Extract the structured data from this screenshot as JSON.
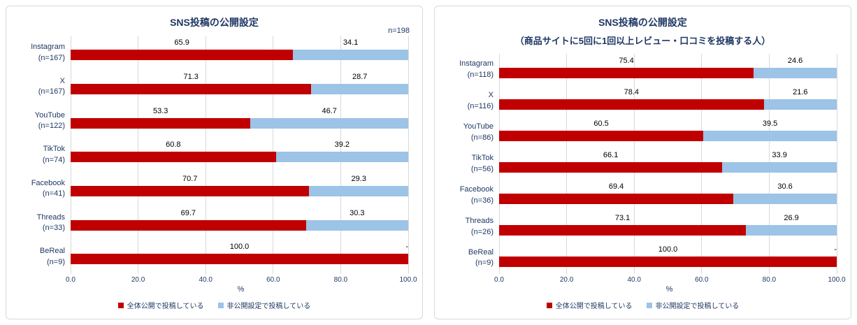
{
  "colors": {
    "series1": "#C00000",
    "series2": "#9DC3E6",
    "text": "#1F3864",
    "data_label": "#000000",
    "grid": "#D9D9D9",
    "panel_border": "#D9D9D9"
  },
  "chart_data": [
    {
      "type": "bar",
      "orientation": "horizontal",
      "stacked": true,
      "title": "SNS投稿の公開設定",
      "note": "n=198",
      "categories": [
        "Instagram",
        "X",
        "YouTube",
        "TikTok",
        "Facebook",
        "Threads",
        "BeReal"
      ],
      "category_n": [
        "(n=167)",
        "(n=167)",
        "(n=122)",
        "(n=74)",
        "(n=41)",
        "(n=33)",
        "(n=9)"
      ],
      "series": [
        {
          "name": "全体公開で投稿している",
          "values": [
            65.9,
            71.3,
            53.3,
            60.8,
            70.7,
            69.7,
            100.0
          ],
          "labels": [
            "65.9",
            "71.3",
            "53.3",
            "60.8",
            "70.7",
            "69.7",
            "100.0"
          ]
        },
        {
          "name": "非公開設定で投稿している",
          "values": [
            34.1,
            28.7,
            46.7,
            39.2,
            29.3,
            30.3,
            0
          ],
          "labels": [
            "34.1",
            "28.7",
            "46.7",
            "39.2",
            "29.3",
            "30.3",
            "-"
          ]
        }
      ],
      "xlabel": "%",
      "xlim": [
        0,
        100
      ],
      "xticks": [
        "0.0",
        "20.0",
        "40.0",
        "60.0",
        "80.0",
        "100.0"
      ],
      "grid": true,
      "legend_position": "bottom"
    },
    {
      "type": "bar",
      "orientation": "horizontal",
      "stacked": true,
      "title": "SNS投稿の公開設定",
      "subtitle": "（商品サイトに5回に1回以上レビュー・口コミを投稿する人）",
      "categories": [
        "Instagram",
        "X",
        "YouTube",
        "TikTok",
        "Facebook",
        "Threads",
        "BeReal"
      ],
      "category_n": [
        "(n=118)",
        "(n=116)",
        "(n=86)",
        "(n=56)",
        "(n=36)",
        "(n=26)",
        "(n=9)"
      ],
      "series": [
        {
          "name": "全体公開で投稿している",
          "values": [
            75.4,
            78.4,
            60.5,
            66.1,
            69.4,
            73.1,
            100.0
          ],
          "labels": [
            "75.4",
            "78.4",
            "60.5",
            "66.1",
            "69.4",
            "73.1",
            "100.0"
          ]
        },
        {
          "name": "非公開設定で投稿している",
          "values": [
            24.6,
            21.6,
            39.5,
            33.9,
            30.6,
            26.9,
            0
          ],
          "labels": [
            "24.6",
            "21.6",
            "39.5",
            "33.9",
            "30.6",
            "26.9",
            "-"
          ]
        }
      ],
      "xlabel": "%",
      "xlim": [
        0,
        100
      ],
      "xticks": [
        "0.0",
        "20.0",
        "40.0",
        "60.0",
        "80.0",
        "100.0"
      ],
      "grid": true,
      "legend_position": "bottom"
    }
  ]
}
